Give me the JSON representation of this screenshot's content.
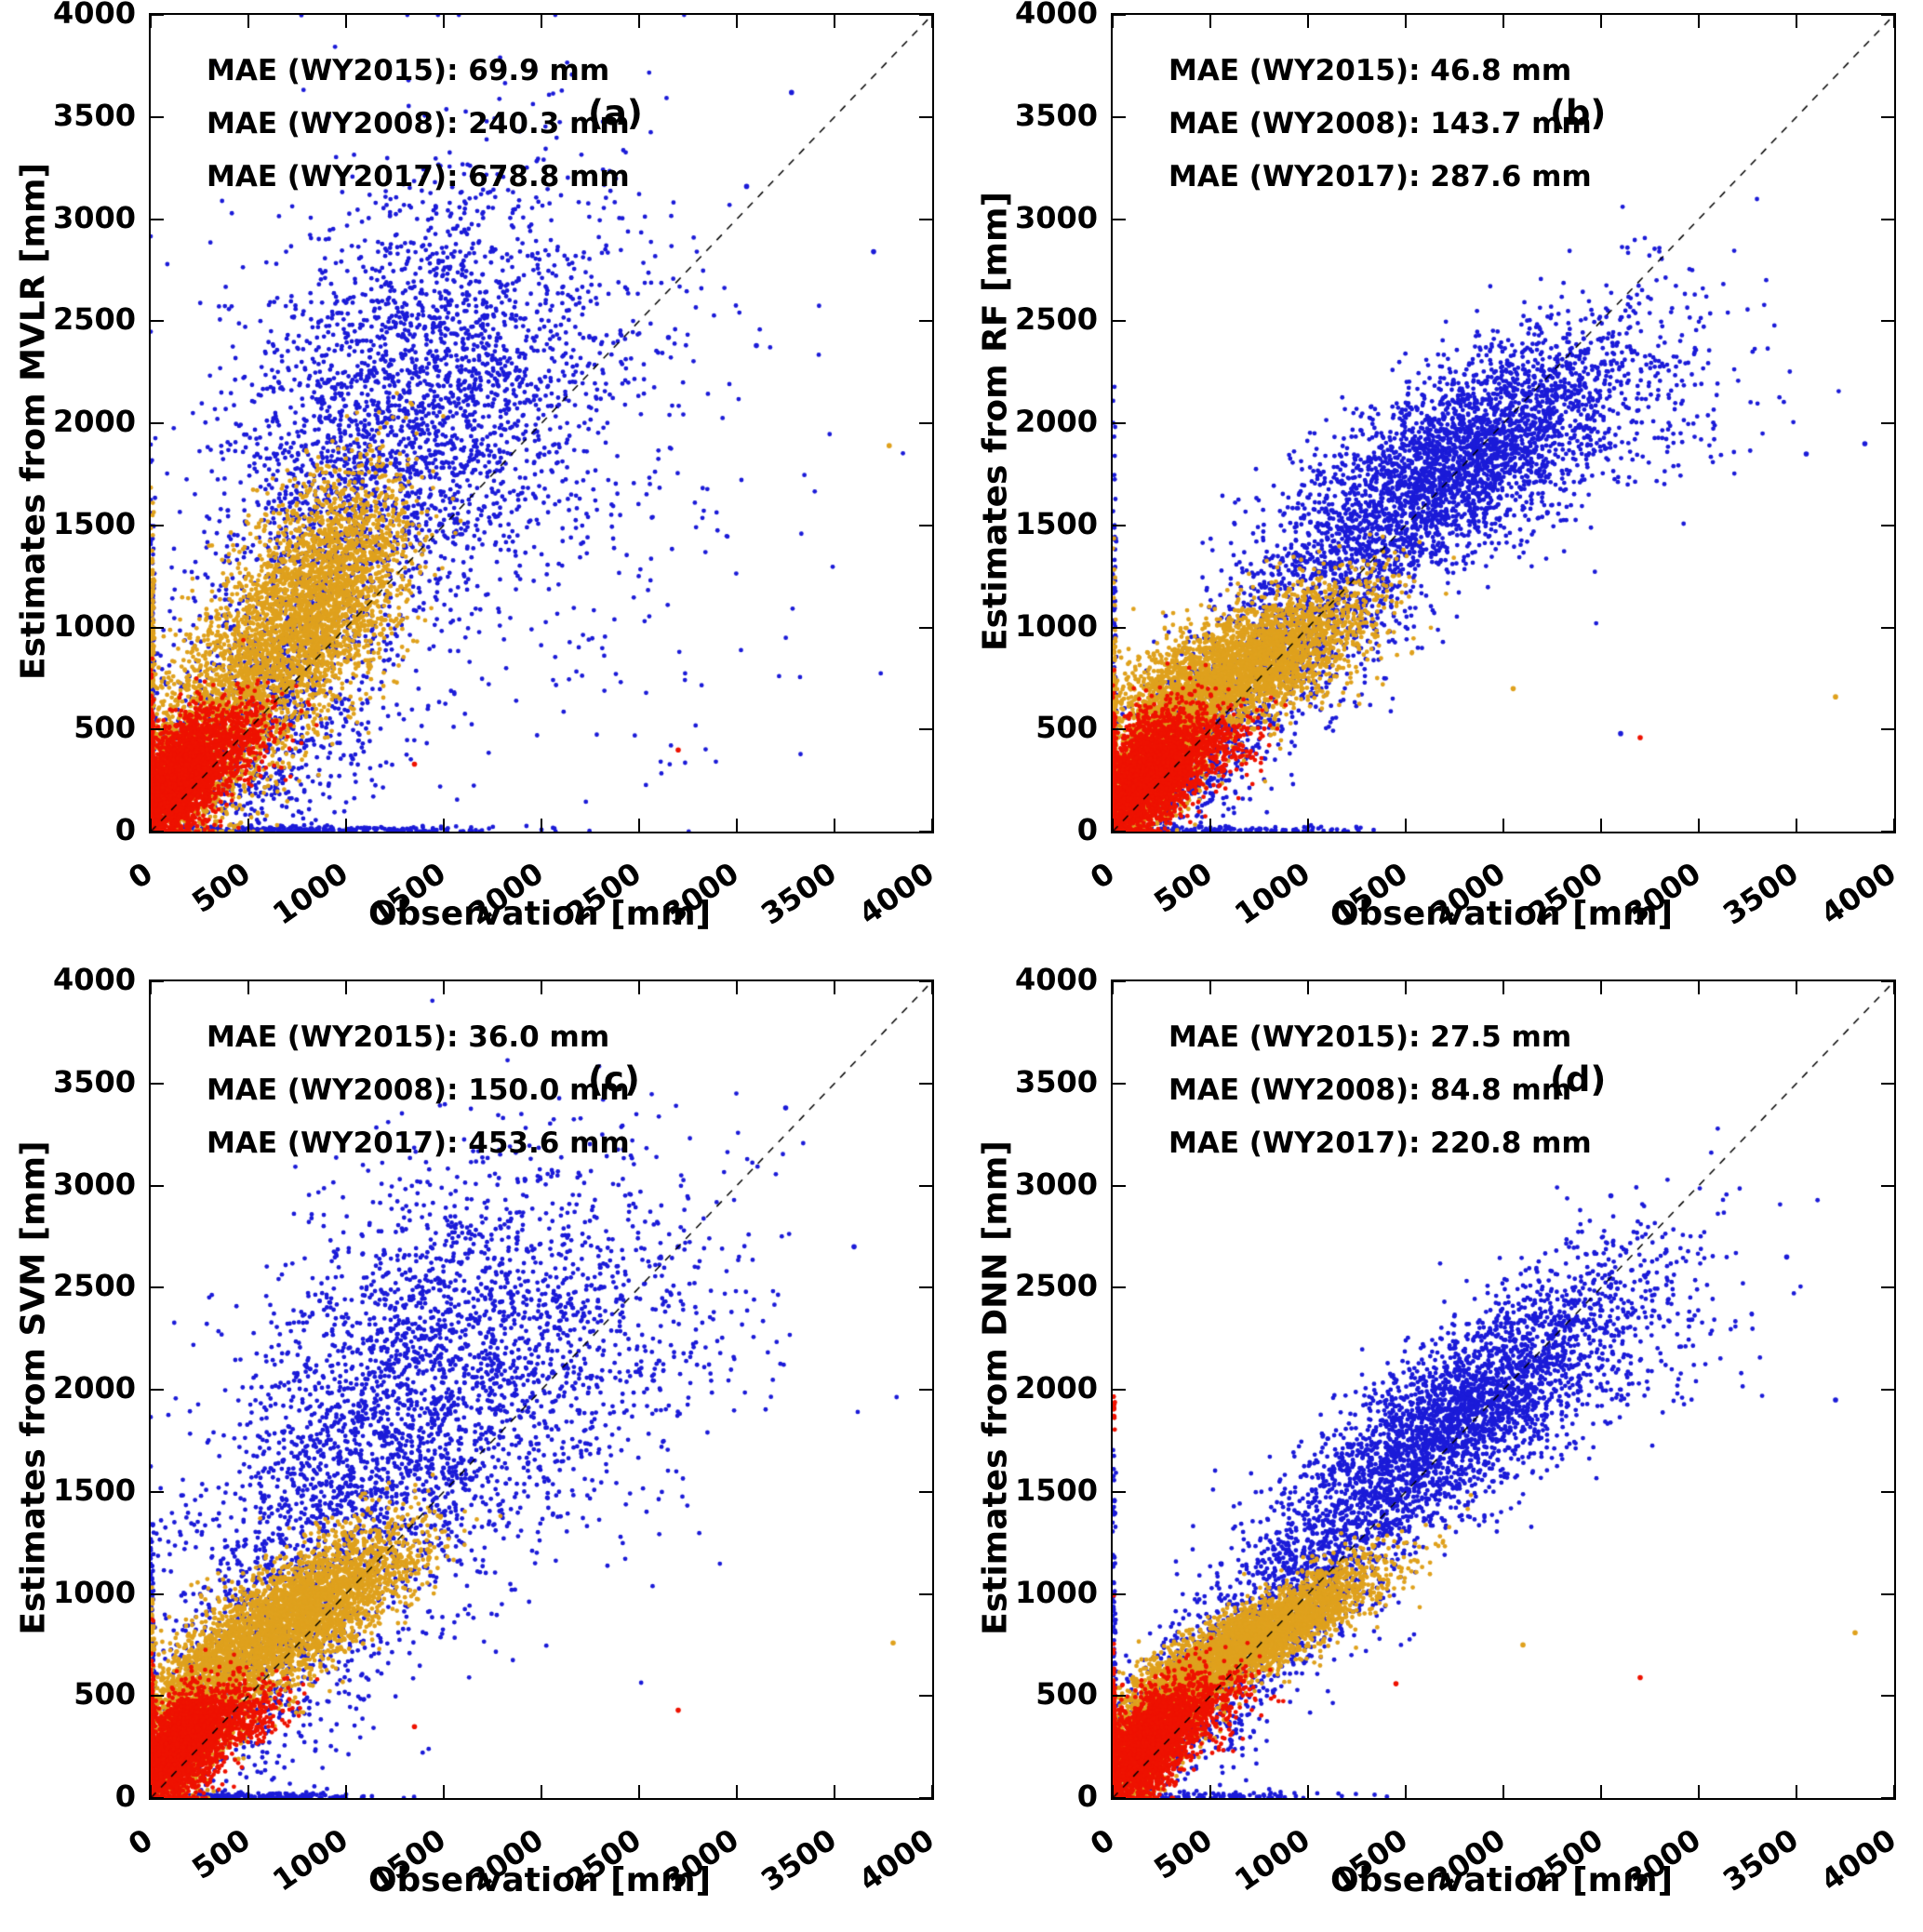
{
  "figure": {
    "background": "#ffffff",
    "axis_color": "#000000",
    "xlabel": "Observation [mm]",
    "tick_values": [
      "0",
      "500",
      "1000",
      "1500",
      "2000",
      "2500",
      "3000",
      "3500",
      "4000"
    ],
    "series_colors": {
      "WY2015": "#ee1200",
      "WY2008": "#dfa11d",
      "WY2017": "#1b1bd8"
    },
    "panels": [
      {
        "label": "(a)",
        "ylabel": "Estimates from MVLR [mm]",
        "mae_lines": [
          "MAE (WY2015): 69.9 mm",
          "MAE (WY2008): 240.3 mm",
          "MAE (WY2017): 678.8 mm"
        ]
      },
      {
        "label": "(b)",
        "ylabel": "Estimates from RF [mm]",
        "mae_lines": [
          "MAE (WY2015): 46.8 mm",
          "MAE (WY2008): 143.7 mm",
          "MAE (WY2017): 287.6 mm"
        ]
      },
      {
        "label": "(c)",
        "ylabel": "Estimates from SVM [mm]",
        "mae_lines": [
          "MAE (WY2015): 36.0 mm",
          "MAE (WY2008): 150.0 mm",
          "MAE (WY2017): 453.6 mm"
        ]
      },
      {
        "label": "(d)",
        "ylabel": "Estimates from DNN [mm]",
        "mae_lines": [
          "MAE (WY2015): 27.5 mm",
          "MAE (WY2008): 84.8 mm",
          "MAE (WY2017): 220.8 mm"
        ]
      }
    ]
  },
  "chart_data": [
    {
      "panel": "a",
      "type": "scatter",
      "xlabel": "Observation [mm]",
      "ylabel": "Estimates from MVLR [mm]",
      "xlim": [
        0,
        4000
      ],
      "ylim": [
        0,
        4000
      ],
      "tick_step": 500,
      "grid": false,
      "legend": false,
      "reference_line": {
        "type": "identity",
        "style": "dashed",
        "color": "#000000"
      },
      "mae_mm": {
        "WY2015": 69.9,
        "WY2008": 240.3,
        "WY2017": 678.8
      },
      "series": [
        {
          "name": "WY2017",
          "color": "#1b1bd8",
          "clusters": [
            {
              "cx": 1450,
              "cy": 2150,
              "sx": 480,
              "sy": 560,
              "corr": 0.25,
              "n": 2400
            },
            {
              "cx": 850,
              "cy": 1400,
              "sx": 330,
              "sy": 520,
              "corr": 0.3,
              "n": 900
            },
            {
              "cx": 520,
              "cy": 450,
              "sx": 360,
              "sy": 320,
              "corr": 0.2,
              "n": 800
            },
            {
              "cx": 2400,
              "cy": 1400,
              "sx": 520,
              "sy": 750,
              "corr": 0.1,
              "n": 180
            },
            {
              "cx": 750,
              "cy": 10,
              "sx": 480,
              "sy": 8,
              "corr": 0,
              "n": 260
            },
            {
              "cx": 8,
              "cy": 600,
              "sx": 5,
              "sy": 450,
              "corr": 0,
              "n": 160
            }
          ],
          "outliers": [
            [
              3280,
              3620
            ],
            [
              3050,
              3160
            ],
            [
              3700,
              2840
            ],
            [
              2650,
              2420
            ],
            [
              3100,
              2380
            ]
          ]
        },
        {
          "name": "WY2008",
          "color": "#dfa11d",
          "clusters": [
            {
              "cx": 860,
              "cy": 1150,
              "sx": 240,
              "sy": 300,
              "corr": 0.45,
              "n": 2600
            },
            {
              "cx": 420,
              "cy": 620,
              "sx": 250,
              "sy": 300,
              "corr": 0.5,
              "n": 1600
            },
            {
              "cx": 130,
              "cy": 220,
              "sx": 110,
              "sy": 160,
              "corr": 0.3,
              "n": 900
            },
            {
              "cx": 8,
              "cy": 800,
              "sx": 5,
              "sy": 380,
              "corr": 0,
              "n": 140
            }
          ],
          "outliers": [
            [
              3780,
              1890
            ]
          ]
        },
        {
          "name": "WY2015",
          "color": "#ee1200",
          "clusters": [
            {
              "cx": 140,
              "cy": 240,
              "sx": 115,
              "sy": 150,
              "corr": 0.45,
              "n": 2400
            },
            {
              "cx": 360,
              "cy": 420,
              "sx": 150,
              "sy": 120,
              "corr": 0.4,
              "n": 700
            },
            {
              "cx": 6,
              "cy": 260,
              "sx": 4,
              "sy": 190,
              "corr": 0,
              "n": 260
            }
          ],
          "outliers": [
            [
              2700,
              400
            ],
            [
              1350,
              330
            ]
          ]
        }
      ]
    },
    {
      "panel": "b",
      "type": "scatter",
      "xlabel": "Observation [mm]",
      "ylabel": "Estimates from RF [mm]",
      "xlim": [
        0,
        4000
      ],
      "ylim": [
        0,
        4000
      ],
      "tick_step": 500,
      "grid": false,
      "legend": false,
      "reference_line": {
        "type": "identity",
        "style": "dashed",
        "color": "#000000"
      },
      "mae_mm": {
        "WY2015": 46.8,
        "WY2008": 143.7,
        "WY2017": 287.6
      },
      "series": [
        {
          "name": "WY2017",
          "color": "#1b1bd8",
          "clusters": [
            {
              "cx": 1750,
              "cy": 1800,
              "sx": 460,
              "sy": 340,
              "corr": 0.72,
              "n": 3400
            },
            {
              "cx": 1000,
              "cy": 1000,
              "sx": 320,
              "sy": 300,
              "corr": 0.6,
              "n": 900
            },
            {
              "cx": 350,
              "cy": 330,
              "sx": 230,
              "sy": 230,
              "corr": 0.5,
              "n": 700
            },
            {
              "cx": 2800,
              "cy": 2050,
              "sx": 350,
              "sy": 300,
              "corr": 0.3,
              "n": 160
            },
            {
              "cx": 550,
              "cy": 10,
              "sx": 380,
              "sy": 8,
              "corr": 0,
              "n": 120
            },
            {
              "cx": 8,
              "cy": 800,
              "sx": 5,
              "sy": 500,
              "corr": 0,
              "n": 130
            }
          ],
          "outliers": [
            [
              3550,
              1850
            ],
            [
              3850,
              1900
            ],
            [
              2600,
              480
            ]
          ]
        },
        {
          "name": "WY2008",
          "color": "#dfa11d",
          "clusters": [
            {
              "cx": 720,
              "cy": 820,
              "sx": 290,
              "sy": 190,
              "corr": 0.65,
              "n": 3000
            },
            {
              "cx": 250,
              "cy": 480,
              "sx": 160,
              "sy": 200,
              "corr": 0.3,
              "n": 1400
            },
            {
              "cx": 100,
              "cy": 150,
              "sx": 80,
              "sy": 110,
              "corr": 0.3,
              "n": 600
            },
            {
              "cx": 8,
              "cy": 650,
              "sx": 5,
              "sy": 300,
              "corr": 0,
              "n": 100
            }
          ],
          "outliers": [
            [
              3700,
              660
            ],
            [
              2050,
              700
            ]
          ]
        },
        {
          "name": "WY2015",
          "color": "#ee1200",
          "clusters": [
            {
              "cx": 160,
              "cy": 260,
              "sx": 130,
              "sy": 160,
              "corr": 0.5,
              "n": 2600
            },
            {
              "cx": 420,
              "cy": 380,
              "sx": 160,
              "sy": 110,
              "corr": 0.4,
              "n": 600
            },
            {
              "cx": 6,
              "cy": 280,
              "sx": 4,
              "sy": 200,
              "corr": 0,
              "n": 200
            }
          ],
          "outliers": [
            [
              2700,
              460
            ]
          ]
        }
      ]
    },
    {
      "panel": "c",
      "type": "scatter",
      "xlabel": "Observation [mm]",
      "ylabel": "Estimates from SVM [mm]",
      "xlim": [
        0,
        4000
      ],
      "ylim": [
        0,
        4000
      ],
      "tick_step": 500,
      "grid": false,
      "legend": false,
      "reference_line": {
        "type": "identity",
        "style": "dashed",
        "color": "#000000"
      },
      "mae_mm": {
        "WY2015": 36.0,
        "WY2008": 150.0,
        "WY2017": 453.6
      },
      "series": [
        {
          "name": "WY2017",
          "color": "#1b1bd8",
          "clusters": [
            {
              "cx": 1550,
              "cy": 2100,
              "sx": 520,
              "sy": 520,
              "corr": 0.3,
              "n": 2300
            },
            {
              "cx": 950,
              "cy": 1450,
              "sx": 380,
              "sy": 430,
              "corr": 0.3,
              "n": 900
            },
            {
              "cx": 500,
              "cy": 650,
              "sx": 350,
              "sy": 420,
              "corr": 0.2,
              "n": 800
            },
            {
              "cx": 2500,
              "cy": 2300,
              "sx": 450,
              "sy": 450,
              "corr": 0.2,
              "n": 250
            },
            {
              "cx": 450,
              "cy": 10,
              "sx": 300,
              "sy": 8,
              "corr": 0,
              "n": 200
            },
            {
              "cx": 8,
              "cy": 600,
              "sx": 5,
              "sy": 420,
              "corr": 0,
              "n": 120
            }
          ],
          "outliers": [
            [
              3250,
              3380
            ],
            [
              3600,
              2700
            ],
            [
              2700,
              2700
            ]
          ]
        },
        {
          "name": "WY2008",
          "color": "#dfa11d",
          "clusters": [
            {
              "cx": 760,
              "cy": 900,
              "sx": 300,
              "sy": 210,
              "corr": 0.72,
              "n": 3200
            },
            {
              "cx": 280,
              "cy": 520,
              "sx": 170,
              "sy": 170,
              "corr": 0.4,
              "n": 1200
            },
            {
              "cx": 120,
              "cy": 190,
              "sx": 95,
              "sy": 130,
              "corr": 0.3,
              "n": 700
            },
            {
              "cx": 8,
              "cy": 500,
              "sx": 5,
              "sy": 250,
              "corr": 0,
              "n": 80
            }
          ],
          "outliers": [
            [
              3800,
              760
            ]
          ]
        },
        {
          "name": "WY2015",
          "color": "#ee1200",
          "clusters": [
            {
              "cx": 150,
              "cy": 240,
              "sx": 115,
              "sy": 140,
              "corr": 0.5,
              "n": 2500
            },
            {
              "cx": 400,
              "cy": 390,
              "sx": 150,
              "sy": 95,
              "corr": 0.4,
              "n": 500
            },
            {
              "cx": 6,
              "cy": 270,
              "sx": 4,
              "sy": 190,
              "corr": 0,
              "n": 220
            }
          ],
          "outliers": [
            [
              2700,
              430
            ],
            [
              1350,
              350
            ]
          ]
        }
      ]
    },
    {
      "panel": "d",
      "type": "scatter",
      "xlabel": "Observation [mm]",
      "ylabel": "Estimates from DNN [mm]",
      "xlim": [
        0,
        4000
      ],
      "ylim": [
        0,
        4000
      ],
      "tick_step": 500,
      "grid": false,
      "legend": false,
      "reference_line": {
        "type": "identity",
        "style": "dashed",
        "color": "#000000"
      },
      "mae_mm": {
        "WY2015": 27.5,
        "WY2008": 84.8,
        "WY2017": 220.8
      },
      "series": [
        {
          "name": "WY2017",
          "color": "#1b1bd8",
          "clusters": [
            {
              "cx": 1750,
              "cy": 1850,
              "sx": 450,
              "sy": 360,
              "corr": 0.8,
              "n": 3200
            },
            {
              "cx": 950,
              "cy": 1000,
              "sx": 320,
              "sy": 300,
              "corr": 0.7,
              "n": 900
            },
            {
              "cx": 400,
              "cy": 450,
              "sx": 250,
              "sy": 250,
              "corr": 0.6,
              "n": 700
            },
            {
              "cx": 2700,
              "cy": 2300,
              "sx": 350,
              "sy": 300,
              "corr": 0.4,
              "n": 180
            },
            {
              "cx": 500,
              "cy": 10,
              "sx": 350,
              "sy": 8,
              "corr": 0,
              "n": 80
            },
            {
              "cx": 8,
              "cy": 700,
              "sx": 5,
              "sy": 450,
              "corr": 0,
              "n": 90
            }
          ],
          "outliers": [
            [
              3700,
              1950
            ],
            [
              3450,
              2650
            ],
            [
              2550,
              2950
            ]
          ]
        },
        {
          "name": "WY2008",
          "color": "#dfa11d",
          "clusters": [
            {
              "cx": 760,
              "cy": 800,
              "sx": 300,
              "sy": 170,
              "corr": 0.85,
              "n": 3200
            },
            {
              "cx": 280,
              "cy": 430,
              "sx": 150,
              "sy": 140,
              "corr": 0.5,
              "n": 1100
            },
            {
              "cx": 110,
              "cy": 160,
              "sx": 85,
              "sy": 110,
              "corr": 0.4,
              "n": 600
            }
          ],
          "outliers": [
            [
              3800,
              810
            ],
            [
              2100,
              750
            ]
          ]
        },
        {
          "name": "WY2015",
          "color": "#ee1200",
          "clusters": [
            {
              "cx": 160,
              "cy": 240,
              "sx": 125,
              "sy": 150,
              "corr": 0.6,
              "n": 2500
            },
            {
              "cx": 420,
              "cy": 420,
              "sx": 150,
              "sy": 110,
              "corr": 0.5,
              "n": 500
            },
            {
              "cx": 6,
              "cy": 1900,
              "sx": 3,
              "sy": 60,
              "corr": 0,
              "n": 12
            },
            {
              "cx": 6,
              "cy": 280,
              "sx": 4,
              "sy": 200,
              "corr": 0,
              "n": 180
            }
          ],
          "outliers": [
            [
              2700,
              590
            ],
            [
              1450,
              560
            ]
          ]
        }
      ]
    }
  ]
}
